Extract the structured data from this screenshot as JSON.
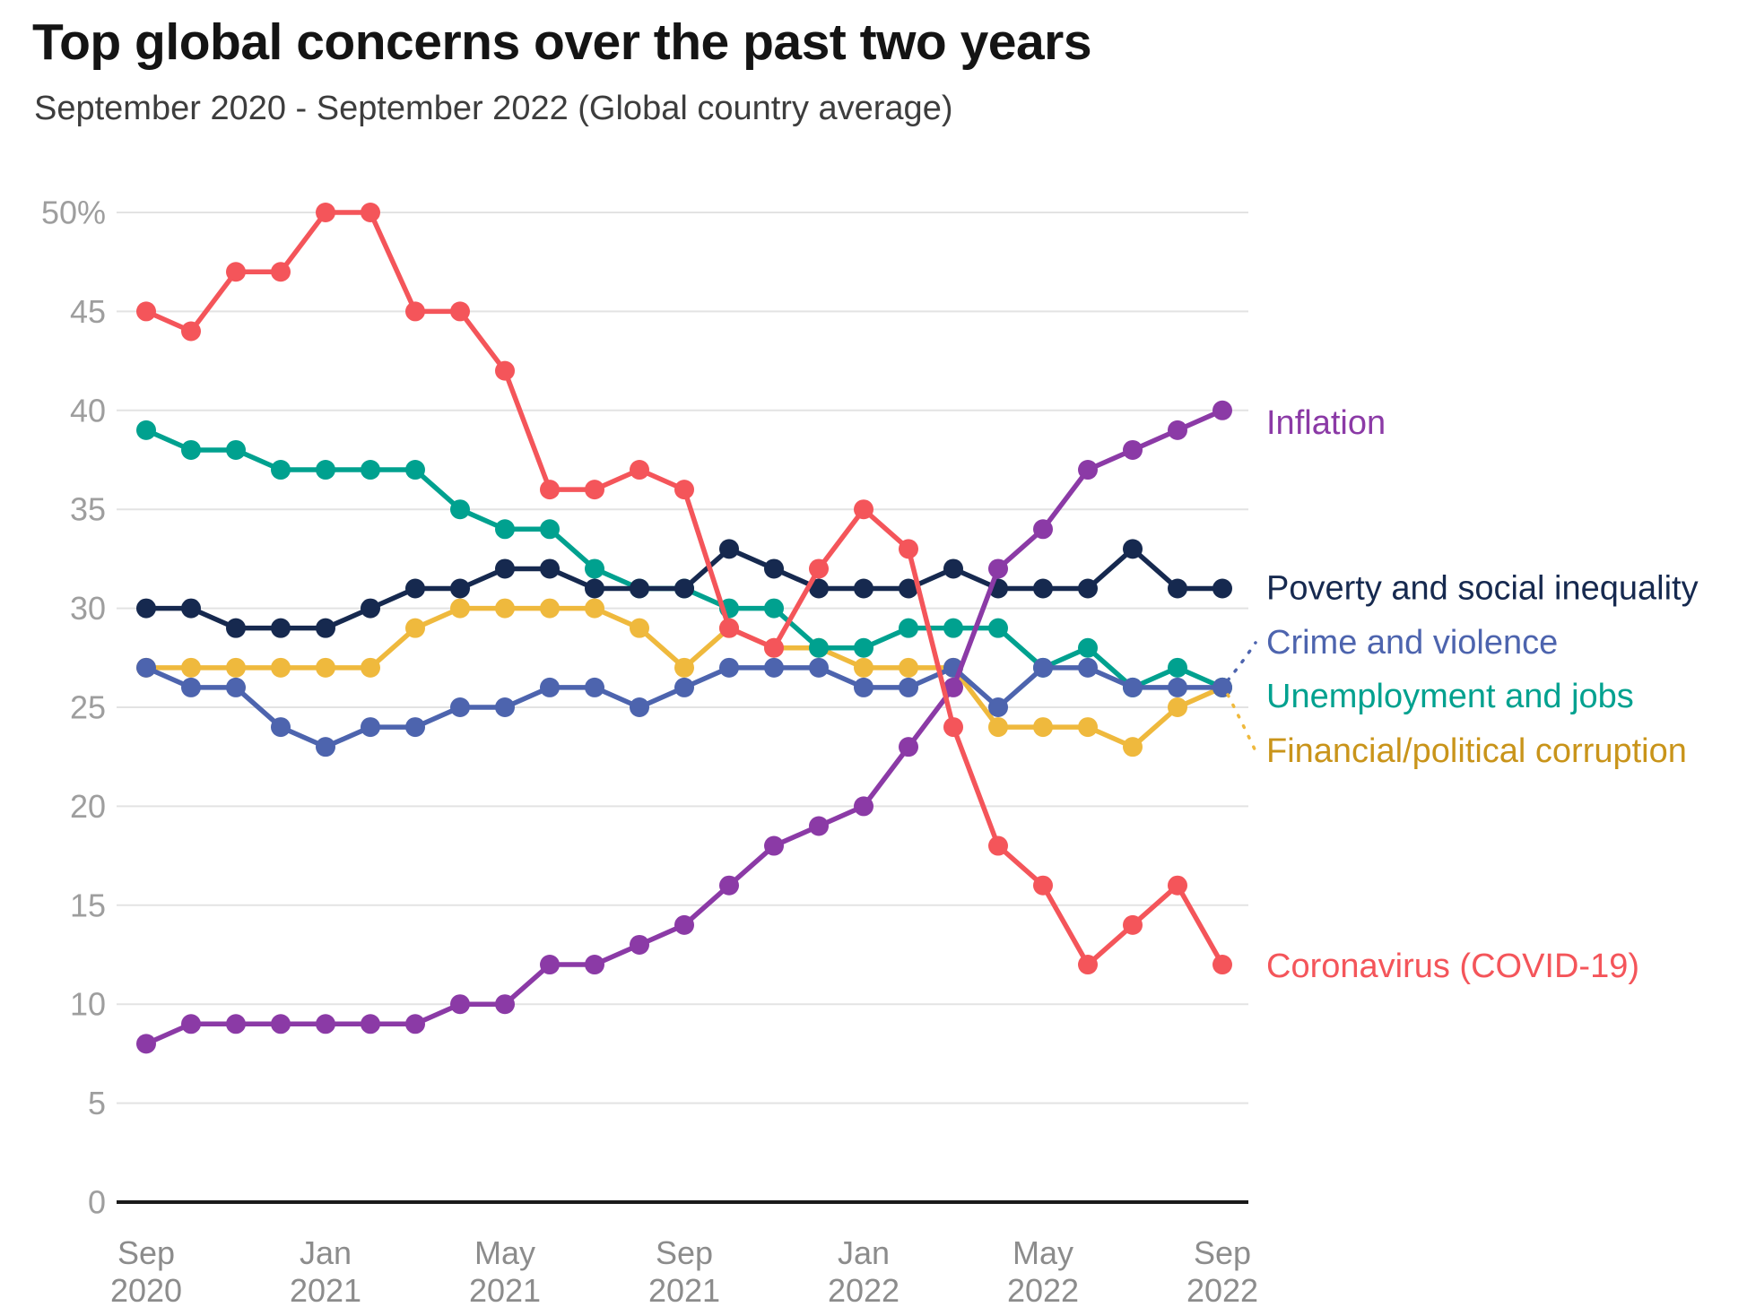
{
  "title": "Top global concerns over the past two years",
  "subtitle": "September 2020 - September 2022 (Global country average)",
  "chart_data": {
    "type": "line",
    "title": "Top global concerns over the past two years",
    "subtitle": "September 2020 - September 2022 (Global country average)",
    "xlabel": "",
    "ylabel": "",
    "ylim": [
      0,
      50
    ],
    "y_ticks": [
      0,
      5,
      10,
      15,
      20,
      25,
      30,
      35,
      40,
      45,
      50
    ],
    "y_top_tick_label": "50%",
    "grid": "horizontal",
    "legend_position": "direct-labels-right",
    "x": [
      "Sep 2020",
      "Oct 2020",
      "Nov 2020",
      "Dec 2020",
      "Jan 2021",
      "Feb 2021",
      "Mar 2021",
      "Apr 2021",
      "May 2021",
      "Jun 2021",
      "Jul 2021",
      "Aug 2021",
      "Sep 2021",
      "Oct 2021",
      "Nov 2021",
      "Dec 2021",
      "Jan 2022",
      "Feb 2022",
      "Mar 2022",
      "Apr 2022",
      "May 2022",
      "Jun 2022",
      "Jul 2022",
      "Aug 2022",
      "Sep 2022"
    ],
    "x_tick_indices": [
      0,
      4,
      8,
      12,
      16,
      20,
      24
    ],
    "x_tick_labels": [
      [
        "Sep",
        "2020"
      ],
      [
        "Jan",
        "2021"
      ],
      [
        "May",
        "2021"
      ],
      [
        "Sep",
        "2021"
      ],
      [
        "Jan",
        "2022"
      ],
      [
        "May",
        "2022"
      ],
      [
        "Sep",
        "2022"
      ]
    ],
    "series": [
      {
        "name": "Financial/political corruption",
        "key": "corruption",
        "color": "#EFB93D",
        "label_color": "#C9941A",
        "label_offset_y": 71,
        "dashed_connector": true,
        "values": [
          27,
          27,
          27,
          27,
          27,
          27,
          29,
          30,
          30,
          30,
          30,
          29,
          27,
          29,
          28,
          28,
          27,
          27,
          27,
          24,
          24,
          24,
          23,
          25,
          26
        ]
      },
      {
        "name": "Unemployment and jobs",
        "key": "unemployment",
        "color": "#00A18F",
        "label_color": "#00A18F",
        "label_offset_y": 10,
        "dashed_connector": false,
        "values": [
          39,
          38,
          38,
          37,
          37,
          37,
          37,
          35,
          34,
          34,
          32,
          31,
          31,
          30,
          30,
          28,
          28,
          29,
          29,
          29,
          27,
          28,
          26,
          27,
          26
        ]
      },
      {
        "name": "Crime and violence",
        "key": "crime",
        "color": "#4D64AE",
        "label_color": "#4D64AE",
        "label_offset_y": -50,
        "dashed_connector": true,
        "values": [
          27,
          26,
          26,
          24,
          23,
          24,
          24,
          25,
          25,
          26,
          26,
          25,
          26,
          27,
          27,
          27,
          26,
          26,
          27,
          25,
          27,
          27,
          26,
          26,
          26
        ]
      },
      {
        "name": "Poverty and social inequality",
        "key": "poverty",
        "color": "#16294F",
        "label_color": "#16294F",
        "label_offset_y": 0,
        "dashed_connector": false,
        "values": [
          30,
          30,
          29,
          29,
          29,
          30,
          31,
          31,
          32,
          32,
          31,
          31,
          31,
          33,
          32,
          31,
          31,
          31,
          32,
          31,
          31,
          31,
          33,
          31,
          31
        ]
      },
      {
        "name": "Inflation",
        "key": "inflation",
        "color": "#8B3AA6",
        "label_color": "#8B3AA6",
        "label_offset_y": 14,
        "dashed_connector": false,
        "values": [
          8,
          9,
          9,
          9,
          9,
          9,
          9,
          10,
          10,
          12,
          12,
          13,
          14,
          16,
          18,
          19,
          20,
          23,
          26,
          32,
          34,
          37,
          38,
          39,
          40
        ]
      },
      {
        "name": "Coronavirus (COVID-19)",
        "key": "covid",
        "color": "#F4555A",
        "label_color": "#F4555A",
        "label_offset_y": 2,
        "dashed_connector": false,
        "values": [
          45,
          44,
          47,
          47,
          50,
          50,
          45,
          45,
          42,
          36,
          36,
          37,
          36,
          29,
          28,
          32,
          35,
          33,
          24,
          18,
          16,
          12,
          14,
          16,
          12
        ]
      }
    ]
  }
}
